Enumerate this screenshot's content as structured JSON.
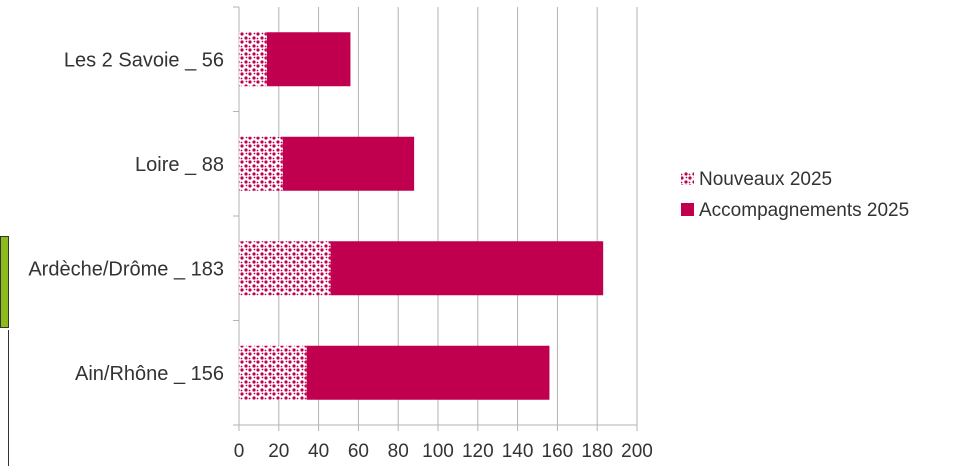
{
  "chart_data": {
    "type": "bar",
    "orientation": "horizontal",
    "stacked": true,
    "categories": [
      "Les 2 Savoie _ 56",
      "Loire _ 88",
      "Ardèche/Drôme _ 183",
      "Ain/Rhône _ 156"
    ],
    "series": [
      {
        "name": "Nouveaux 2025",
        "values": [
          14,
          22,
          46,
          34
        ],
        "color": "#c0004e",
        "pattern": "dotted"
      },
      {
        "name": "Accompagnements 2025",
        "values": [
          42,
          66,
          137,
          122
        ],
        "color": "#c0004e",
        "pattern": "solid"
      }
    ],
    "xlim": [
      0,
      200
    ],
    "xticks": [
      "0",
      "20",
      "40",
      "60",
      "80",
      "100",
      "120",
      "140",
      "160",
      "180",
      "200"
    ],
    "grid": "vertical",
    "legend": "right",
    "title": "",
    "xlabel": "",
    "ylabel": ""
  }
}
